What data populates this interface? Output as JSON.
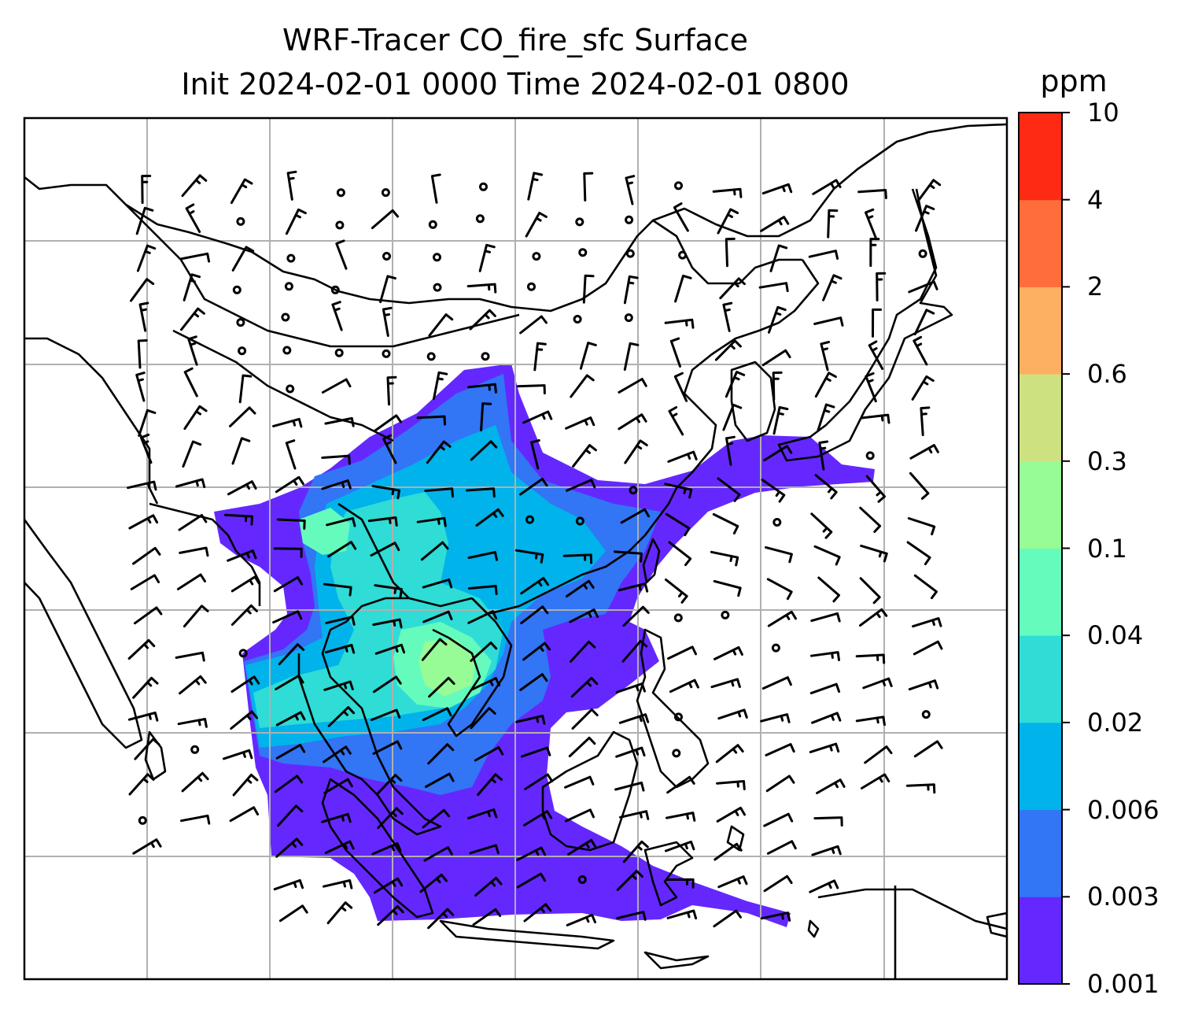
{
  "title": {
    "line1": "WRF-Tracer CO_fire_sfc Surface",
    "line2": "Init 2024-02-01 0000 Time 2024-02-01 0800"
  },
  "colorbar": {
    "unit": "ppm",
    "levels": [
      "0.001",
      "0.003",
      "0.006",
      "0.02",
      "0.04",
      "0.1",
      "0.3",
      "0.6",
      "2",
      "4",
      "10"
    ],
    "colors": [
      "#6428ff",
      "#3275f5",
      "#00b3eb",
      "#2fdcd6",
      "#64fbbd",
      "#97fb96",
      "#cde181",
      "#fdb062",
      "#ff6e3a",
      "#ff2a14"
    ]
  },
  "map": {
    "land_outline_color": "#000000",
    "gridline_color": "#b0b0b0",
    "plume_colors_used": [
      "#6428ff",
      "#3275f5",
      "#00b3eb",
      "#2fdcd6",
      "#64fbbd",
      "#97fb96"
    ]
  }
}
